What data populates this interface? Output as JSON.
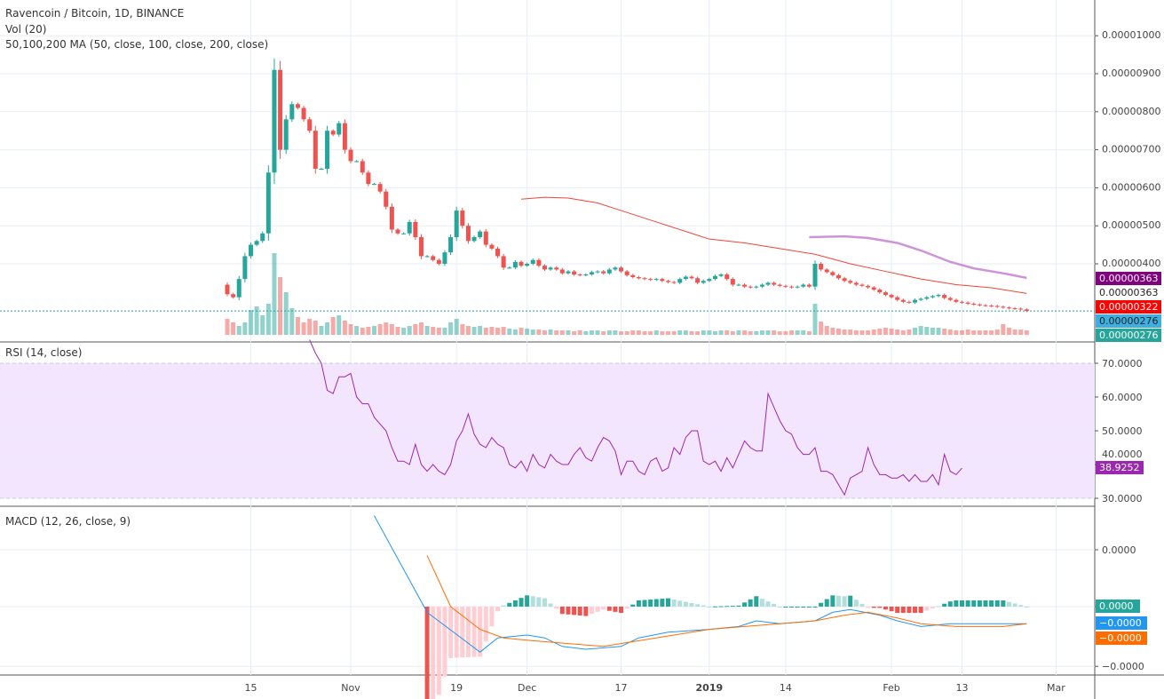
{
  "legend": {
    "symbol": "Ravencoin / Bitcoin, 1D, BINANCE",
    "volume": "Vol (20)",
    "ma": "50,100,200 MA (50, close, 100, close, 200, close)",
    "rsi": "RSI (14, close)",
    "macd": "MACD (12, 26, close, 9)"
  },
  "colors": {
    "up": "#26a69a",
    "down": "#ef5350",
    "ma50": "#f44336",
    "ma100": "#ce93d8",
    "rsi": "#9c27b0",
    "rsi_band": "#f3e5fd",
    "macd": "#2196f3",
    "signal": "#ff6d00",
    "grid": "#e6eef4"
  },
  "tags": {
    "ma100": {
      "text": "0.00000363",
      "color": "#800080"
    },
    "ma_plain": {
      "text": "0.00000363"
    },
    "ma50": {
      "text": "0.00000322",
      "color": "#ff0000"
    },
    "last": {
      "text": "0.00000276",
      "color": "#3cb0e0"
    },
    "vol": {
      "text": "0.00000276",
      "color": "#26a69a"
    },
    "rsi": {
      "text": "38.9252",
      "color": "#9c27b0"
    },
    "hist": {
      "text": "0.0000",
      "color": "#26a69a"
    },
    "macd": {
      "text": "−0.0000",
      "color": "#2196f3"
    },
    "signal": {
      "text": "−0.0000",
      "color": "#ff6d00"
    }
  },
  "chart_data": {
    "type": "candlestick",
    "start_date": "2018-10-11",
    "first_open": 345,
    "unit_note": "prices in satoshi (1e-8 BTC)",
    "closes": [
      320,
      312,
      360,
      420,
      450,
      460,
      480,
      640,
      910,
      700,
      780,
      820,
      810,
      780,
      750,
      650,
      650,
      750,
      740,
      770,
      700,
      670,
      670,
      640,
      610,
      610,
      590,
      550,
      490,
      480,
      480,
      510,
      470,
      420,
      420,
      410,
      400,
      430,
      470,
      540,
      500,
      460,
      470,
      485,
      450,
      440,
      420,
      390,
      390,
      405,
      395,
      400,
      410,
      395,
      385,
      390,
      385,
      375,
      380,
      372,
      370,
      372,
      378,
      380,
      375,
      385,
      390,
      380,
      370,
      365,
      362,
      360,
      358,
      360,
      355,
      352,
      350,
      360,
      366,
      362,
      350,
      355,
      360,
      368,
      372,
      360,
      345,
      345,
      340,
      338,
      340,
      345,
      350,
      345,
      342,
      340,
      338,
      340,
      345,
      340,
      400,
      385,
      378,
      370,
      362,
      355,
      350,
      345,
      342,
      338,
      332,
      325,
      318,
      312,
      305,
      300,
      298,
      305,
      308,
      312,
      315,
      318,
      310,
      305,
      300,
      298,
      295,
      293,
      291,
      290,
      289,
      287,
      285,
      283,
      282,
      280,
      276
    ],
    "volume_relative": [
      18,
      14,
      10,
      14,
      28,
      32,
      22,
      35,
      92,
      65,
      48,
      30,
      20,
      14,
      18,
      16,
      10,
      14,
      20,
      22,
      16,
      12,
      10,
      8,
      9,
      10,
      12,
      14,
      12,
      9,
      8,
      10,
      12,
      14,
      10,
      9,
      8,
      8,
      14,
      18,
      12,
      10,
      9,
      10,
      8,
      9,
      8,
      9,
      7,
      6,
      8,
      7,
      6,
      6,
      5,
      6,
      5,
      5,
      5,
      4,
      5,
      4,
      5,
      5,
      4,
      5,
      5,
      4,
      4,
      5,
      5,
      4,
      4,
      5,
      4,
      4,
      4,
      5,
      5,
      4,
      4,
      5,
      5,
      4,
      5,
      5,
      4,
      5,
      5,
      4,
      4,
      5,
      5,
      5,
      4,
      4,
      5,
      5,
      5,
      4,
      35,
      15,
      10,
      8,
      7,
      6,
      6,
      5,
      5,
      5,
      6,
      7,
      8,
      7,
      6,
      5,
      6,
      8,
      10,
      9,
      8,
      8,
      7,
      6,
      5,
      5,
      6,
      5,
      5,
      5,
      5,
      6,
      12,
      8,
      6,
      6,
      5
    ],
    "ma50": [
      [
        "2018-11-30",
        570
      ],
      [
        "2018-12-04",
        575
      ],
      [
        "2018-12-08",
        573
      ],
      [
        "2018-12-13",
        560
      ],
      [
        "2018-12-17",
        540
      ],
      [
        "2018-12-23",
        510
      ],
      [
        "2018-12-29",
        480
      ],
      [
        "2019-01-01",
        465
      ],
      [
        "2019-01-07",
        455
      ],
      [
        "2019-01-13",
        440
      ],
      [
        "2019-01-19",
        425
      ],
      [
        "2019-01-25",
        400
      ],
      [
        "2019-01-31",
        380
      ],
      [
        "2019-02-06",
        360
      ],
      [
        "2019-02-12",
        345
      ],
      [
        "2019-02-18",
        337
      ],
      [
        "2019-02-24",
        322
      ]
    ],
    "ma100": [
      [
        "2019-01-18",
        470
      ],
      [
        "2019-01-24",
        472
      ],
      [
        "2019-01-28",
        468
      ],
      [
        "2019-02-02",
        455
      ],
      [
        "2019-02-06",
        435
      ],
      [
        "2019-02-11",
        405
      ],
      [
        "2019-02-15",
        388
      ],
      [
        "2019-02-20",
        375
      ],
      [
        "2019-02-24",
        363
      ]
    ],
    "price_ticks": [
      "0.00001000",
      "0.00000900",
      "0.00000800",
      "0.00000700",
      "0.00000600",
      "0.00000500",
      "0.00000400"
    ],
    "price_tick_values": [
      1000,
      900,
      800,
      700,
      600,
      500,
      400
    ],
    "x_ticks": [
      [
        "15",
        "2018-10-15"
      ],
      [
        "Nov",
        "2018-11-01"
      ],
      [
        "19",
        "2018-11-19"
      ],
      [
        "Dec",
        "2018-12-01"
      ],
      [
        "17",
        "2018-12-17"
      ],
      [
        "2019",
        "2019-01-01"
      ],
      [
        "14",
        "2019-01-14"
      ],
      [
        "Feb",
        "2019-02-01"
      ],
      [
        "13",
        "2019-02-13"
      ],
      [
        "Mar",
        "2019-03-01"
      ]
    ],
    "rsi": {
      "start_date": "2018-10-25",
      "values": [
        77,
        73,
        70,
        62,
        61,
        66,
        66,
        67,
        60,
        58,
        58,
        54,
        52,
        50,
        45,
        41,
        41,
        40,
        46,
        40,
        38,
        40,
        38,
        37,
        40,
        47,
        50,
        55,
        49,
        46,
        45,
        48,
        46,
        45,
        40,
        39,
        41,
        38,
        43,
        40,
        39,
        43,
        41,
        40,
        40,
        43,
        45,
        42,
        41,
        45,
        48,
        47,
        44,
        37,
        41,
        41,
        38,
        37,
        41,
        42,
        38,
        39,
        45,
        43,
        48,
        50,
        50,
        41,
        40,
        41,
        38,
        42,
        39,
        43,
        47,
        45,
        44,
        44,
        61,
        57,
        53,
        50,
        49,
        45,
        43,
        43,
        45,
        38,
        38,
        37,
        34,
        31,
        36,
        37,
        38,
        45,
        40,
        37,
        37,
        36,
        36,
        37,
        35,
        37,
        35,
        35,
        37,
        34,
        43,
        38,
        37,
        38.9252
      ],
      "ticks": [
        "70.0000",
        "60.0000",
        "50.0000",
        "40.0000",
        "30.0000"
      ],
      "tick_values": [
        70,
        60,
        50,
        40,
        30
      ],
      "band": [
        30,
        70
      ]
    },
    "macd": {
      "macd_line": [
        [
          "2018-11-05",
          32
        ],
        [
          "2018-11-14",
          -2
        ],
        [
          "2018-11-23",
          -16
        ],
        [
          "2018-11-26",
          -11
        ],
        [
          "2018-12-01",
          -10
        ],
        [
          "2018-12-04",
          -11
        ],
        [
          "2018-12-07",
          -14
        ],
        [
          "2018-12-11",
          -15
        ],
        [
          "2018-12-17",
          -14
        ],
        [
          "2018-12-20",
          -11
        ],
        [
          "2018-12-25",
          -9
        ],
        [
          "2019-01-01",
          -8
        ],
        [
          "2019-01-06",
          -7
        ],
        [
          "2019-01-09",
          -5
        ],
        [
          "2019-01-13",
          -6
        ],
        [
          "2019-01-19",
          -5
        ],
        [
          "2019-01-22",
          -2
        ],
        [
          "2019-01-25",
          -1
        ],
        [
          "2019-01-30",
          -3
        ],
        [
          "2019-02-02",
          -5
        ],
        [
          "2019-02-06",
          -7
        ],
        [
          "2019-02-11",
          -6
        ],
        [
          "2019-02-20",
          -6
        ],
        [
          "2019-02-24",
          -6
        ]
      ],
      "signal_line": [
        [
          "2018-11-14",
          18
        ],
        [
          "2018-11-18",
          0
        ],
        [
          "2018-11-23",
          -8
        ],
        [
          "2018-11-27",
          -11
        ],
        [
          "2018-12-02",
          -12
        ],
        [
          "2018-12-08",
          -13
        ],
        [
          "2018-12-14",
          -14
        ],
        [
          "2018-12-20",
          -12
        ],
        [
          "2018-12-26",
          -10
        ],
        [
          "2019-01-01",
          -8
        ],
        [
          "2019-01-07",
          -7
        ],
        [
          "2019-01-13",
          -6
        ],
        [
          "2019-01-19",
          -5
        ],
        [
          "2019-01-24",
          -3
        ],
        [
          "2019-01-28",
          -2
        ],
        [
          "2019-02-02",
          -4
        ],
        [
          "2019-02-06",
          -6
        ],
        [
          "2019-02-12",
          -7
        ],
        [
          "2019-02-20",
          -7
        ],
        [
          "2019-02-24",
          -6
        ]
      ],
      "ticks": [
        "0.0000",
        "−0.0000"
      ]
    }
  }
}
